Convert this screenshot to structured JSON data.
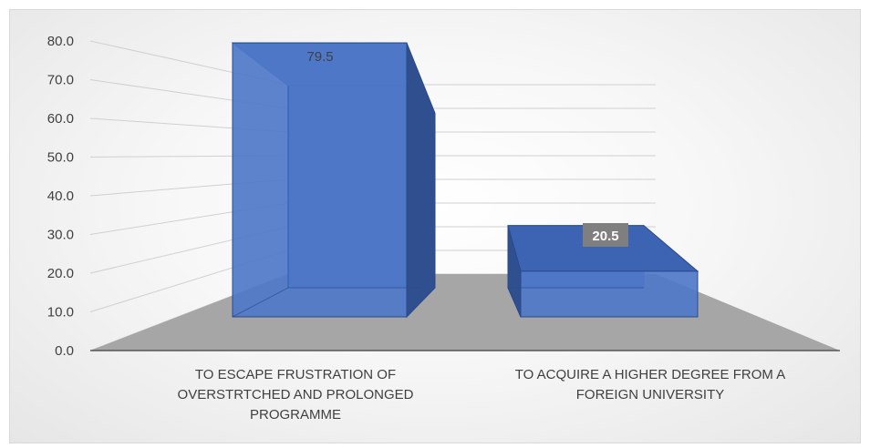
{
  "chart_data": {
    "type": "bar",
    "style": "3d-perspective",
    "title": "",
    "xlabel": "",
    "ylabel": "",
    "ylim": [
      0,
      80
    ],
    "y_ticks": [
      "0.0",
      "10.0",
      "20.0",
      "30.0",
      "40.0",
      "50.0",
      "60.0",
      "70.0",
      "80.0"
    ],
    "categories": [
      [
        "TO ESCAPE FRUSTRATION OF",
        "OVERSTRTCHED AND PROLONGED",
        "PROGRAMME"
      ],
      [
        "TO ACQUIRE A HIGHER DEGREE FROM A",
        "FOREIGN UNIVERSITY"
      ]
    ],
    "values": [
      79.5,
      20.5
    ],
    "data_labels": [
      "79.5",
      "20.5"
    ],
    "grid": true,
    "legend": "none",
    "colors": {
      "bar_front": "#4f78c9",
      "bar_side": "#2f4f8f",
      "bar_top": "#3d64b3",
      "bar_edge": "#2a4a8a",
      "floor": "#a6a6a6",
      "gridline": "#d0d0d0",
      "label_box": "#7f7f7f"
    }
  }
}
